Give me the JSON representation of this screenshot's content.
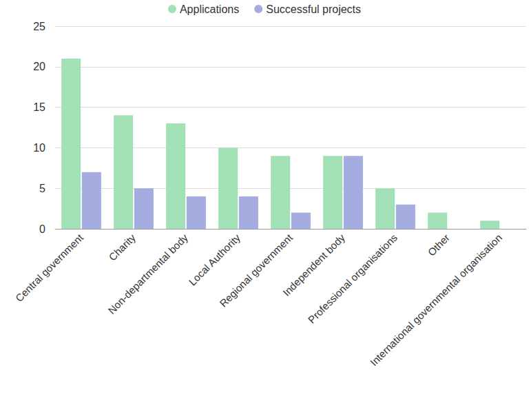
{
  "chart_data": {
    "type": "bar",
    "categories": [
      "Central government",
      "Charity",
      "Non-departmental body",
      "Local Authority",
      "Regional government",
      "Independent body",
      "Professional organisations",
      "Other",
      "International governmental organisation"
    ],
    "series": [
      {
        "name": "Applications",
        "color": "#a2e0b6",
        "values": [
          21,
          14,
          13,
          10,
          9,
          9,
          5,
          2,
          1
        ]
      },
      {
        "name": "Successful projects",
        "color": "#a5ade0",
        "values": [
          7,
          5,
          4,
          4,
          2,
          9,
          3,
          0,
          0
        ]
      }
    ],
    "ylim": [
      0,
      25
    ],
    "yticks": [
      0,
      5,
      10,
      15,
      20,
      25
    ],
    "grid": true,
    "legend": "top"
  }
}
